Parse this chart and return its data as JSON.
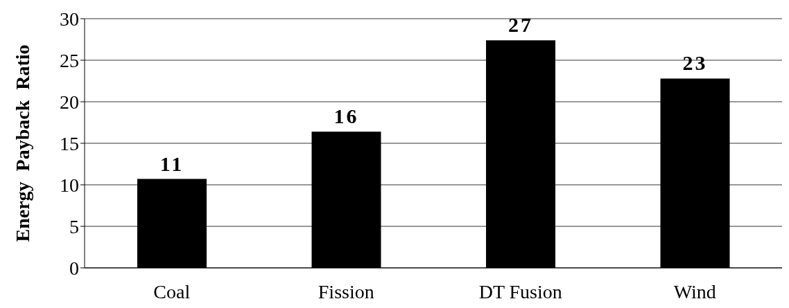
{
  "chart_data": {
    "type": "bar",
    "ylabel": "Energy Payback Ratio",
    "categories": [
      "Coal",
      "Fission",
      "DT Fusion",
      "Wind"
    ],
    "values": [
      10.7,
      16.4,
      27.4,
      22.8
    ],
    "value_labels": [
      "11",
      "16",
      "27",
      "23"
    ],
    "color": "#000000",
    "ylim": [
      0,
      30
    ],
    "yticks": [
      0,
      5,
      10,
      15,
      20,
      25,
      30
    ],
    "grid": "y",
    "legend": false
  }
}
